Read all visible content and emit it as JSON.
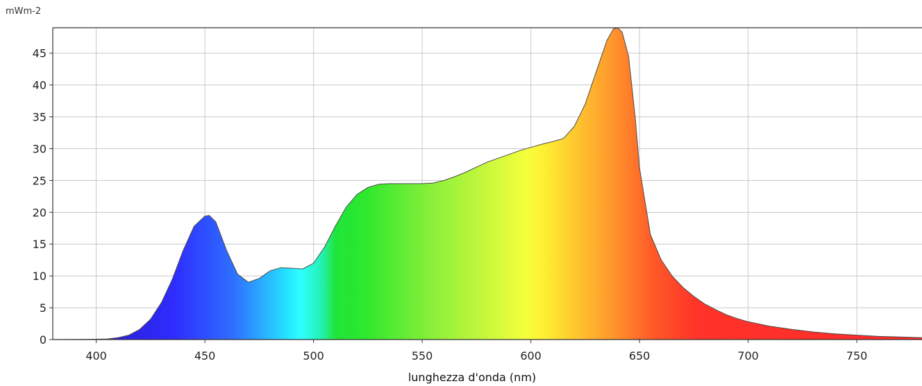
{
  "chart_data": {
    "type": "area",
    "ylabel": "mWm-2",
    "xlabel": "lunghezza d'onda (nm)",
    "xlim": [
      380,
      780
    ],
    "ylim": [
      0,
      49
    ],
    "xticks": [
      400,
      450,
      500,
      550,
      600,
      650,
      700,
      750
    ],
    "yticks": [
      0,
      5,
      10,
      15,
      20,
      25,
      30,
      35,
      40,
      45
    ],
    "grid": true,
    "fill": "visible spectrum gradient",
    "series": [
      {
        "x": [
          380,
          400,
          405,
          410,
          415,
          420,
          425,
          430,
          435,
          440,
          445,
          450,
          452,
          455,
          460,
          465,
          470,
          475,
          480,
          485,
          490,
          495,
          500,
          505,
          510,
          515,
          520,
          525,
          530,
          535,
          540,
          545,
          550,
          555,
          560,
          565,
          570,
          575,
          580,
          585,
          590,
          595,
          600,
          605,
          610,
          615,
          620,
          625,
          630,
          635,
          638,
          640,
          642,
          645,
          648,
          650,
          655,
          660,
          665,
          670,
          675,
          680,
          685,
          690,
          695,
          700,
          710,
          720,
          730,
          740,
          750,
          760,
          770,
          780
        ],
        "values": [
          0,
          0.05,
          0.1,
          0.3,
          0.7,
          1.6,
          3.2,
          5.8,
          9.5,
          14,
          17.8,
          19.4,
          19.5,
          18.5,
          14,
          10.3,
          9,
          9.6,
          10.8,
          11.3,
          11.2,
          11.1,
          12,
          14.5,
          17.8,
          20.8,
          22.8,
          23.9,
          24.4,
          24.5,
          24.5,
          24.5,
          24.5,
          24.6,
          25,
          25.6,
          26.3,
          27.1,
          27.9,
          28.5,
          29.1,
          29.7,
          30.2,
          30.7,
          31.1,
          31.6,
          33.5,
          37,
          42,
          47,
          48.8,
          49,
          48.3,
          44.5,
          35,
          27,
          16.5,
          12.5,
          10,
          8.2,
          6.8,
          5.6,
          4.7,
          3.9,
          3.3,
          2.8,
          2.1,
          1.6,
          1.2,
          0.9,
          0.7,
          0.5,
          0.4,
          0.3
        ]
      }
    ]
  }
}
